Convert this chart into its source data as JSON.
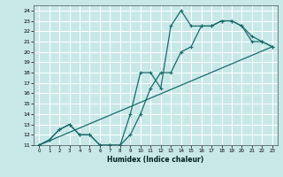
{
  "xlabel": "Humidex (Indice chaleur)",
  "bg_color": "#c8e8e8",
  "grid_color": "#ffffff",
  "line_color": "#1a6b6b",
  "xlim": [
    -0.5,
    23.5
  ],
  "ylim": [
    11,
    24.5
  ],
  "yticks": [
    11,
    12,
    13,
    14,
    15,
    16,
    17,
    18,
    19,
    20,
    21,
    22,
    23,
    24
  ],
  "xticks": [
    0,
    1,
    2,
    3,
    4,
    5,
    6,
    7,
    8,
    9,
    10,
    11,
    12,
    13,
    14,
    15,
    16,
    17,
    18,
    19,
    20,
    21,
    22,
    23
  ],
  "line1_x": [
    0,
    1,
    2,
    3,
    4,
    5,
    6,
    7,
    8,
    9,
    10,
    11,
    12,
    13,
    14,
    15,
    16,
    17,
    18,
    19,
    20,
    21,
    22,
    23
  ],
  "line1_y": [
    11,
    11.5,
    12.5,
    13,
    12,
    12,
    11,
    11,
    11,
    12,
    14,
    16.5,
    18,
    18,
    20,
    20.5,
    22.5,
    22.5,
    23,
    23,
    22.5,
    21,
    21,
    20.5
  ],
  "line2_x": [
    0,
    1,
    2,
    3,
    4,
    5,
    6,
    7,
    8,
    9,
    10,
    11,
    12,
    13,
    14,
    15,
    16,
    17,
    18,
    19,
    20,
    21,
    22,
    23
  ],
  "line2_y": [
    11,
    11.5,
    12.5,
    13,
    12,
    12,
    11,
    11,
    11,
    14,
    18,
    18,
    16.5,
    22.5,
    24,
    22.5,
    22.5,
    22.5,
    23,
    23,
    22.5,
    21.5,
    21,
    20.5
  ],
  "line3_x": [
    0,
    23
  ],
  "line3_y": [
    11,
    20.5
  ]
}
